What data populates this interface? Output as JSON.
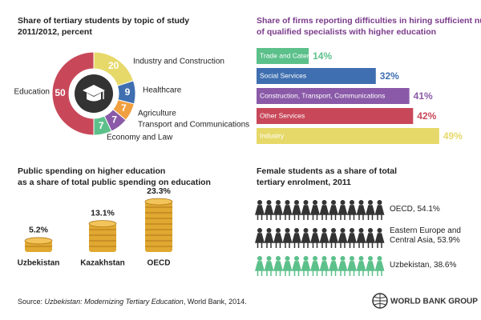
{
  "chart_data": [
    {
      "type": "donut",
      "title": "Share of tertiary students by topic of study",
      "subtitle": "2011/2012, percent",
      "categories": [
        "Industry and Construction",
        "Healthcare",
        "Agriculture",
        "Transport and Communications",
        "Economy and Law",
        "Education"
      ],
      "values": [
        20,
        9,
        7,
        7,
        7,
        50
      ],
      "colors": [
        "#e6d96a",
        "#3f6fb0",
        "#f0a040",
        "#8a5aa8",
        "#5cc08a",
        "#c8485a"
      ]
    },
    {
      "type": "hbar",
      "title": "Share of firms reporting difficulties in hiring sufficient numbers of qualified specialists with higher education",
      "categories": [
        "Trade and Catering",
        "Social Services",
        "Construction, Transport, Communications",
        "Other Services",
        "Industry"
      ],
      "values": [
        14,
        32,
        41,
        42,
        49
      ],
      "value_labels": [
        "14%",
        "32%",
        "41%",
        "42%",
        "49%"
      ],
      "colors": [
        "#5cc08a",
        "#3f6fb0",
        "#8a5aa8",
        "#c8485a",
        "#e6d96a"
      ]
    },
    {
      "type": "coins",
      "title": "Public spending on higher education",
      "subtitle": "as a share of total public spending on education",
      "categories": [
        "Uzbekistan",
        "Kazakhstan",
        "OECD"
      ],
      "values": [
        5.2,
        13.1,
        23.3
      ],
      "value_labels": [
        "5.2%",
        "13.1%",
        "23.3%"
      ],
      "color": "#e0a830"
    },
    {
      "type": "pictograph",
      "title": "Female students as a share of total",
      "subtitle": "tertiary enrolment, 2011",
      "values": [
        54.1,
        53.9,
        38.6
      ],
      "value_labels": [
        "OECD, 54.1%",
        "Eastern Europe and Central Asia, 53.9%",
        "Uzbekistan, 38.6%"
      ],
      "colors": [
        "#333333",
        "#333333",
        "#5cc08a"
      ]
    }
  ],
  "source": {
    "prefix": "Source:",
    "title": "Uzbekistan: Modernizing Tertiary Education",
    "suffix": ", World Bank, 2014."
  },
  "logo": "WORLD BANK GROUP"
}
